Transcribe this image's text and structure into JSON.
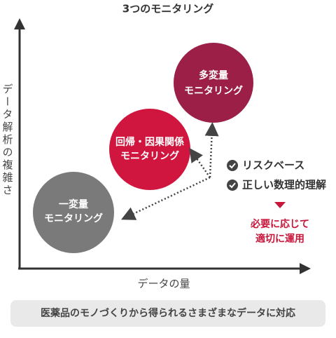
{
  "title": "3つのモニタリング",
  "axes": {
    "y_label": "データ解析の複雑さ",
    "x_label": "データの量"
  },
  "circles": [
    {
      "lines": [
        "一変量",
        "モニタリング"
      ]
    },
    {
      "lines": [
        "回帰・因果関係",
        "モニタリング"
      ]
    },
    {
      "lines": [
        "多変量",
        "モニタリング"
      ]
    }
  ],
  "checklist": [
    "リスクベース",
    "正しい数理的理解"
  ],
  "note": [
    "必要に応じて",
    "適切に運用"
  ],
  "footer": "医薬品のモノづくりから得られるさまざまなデータに対応"
}
